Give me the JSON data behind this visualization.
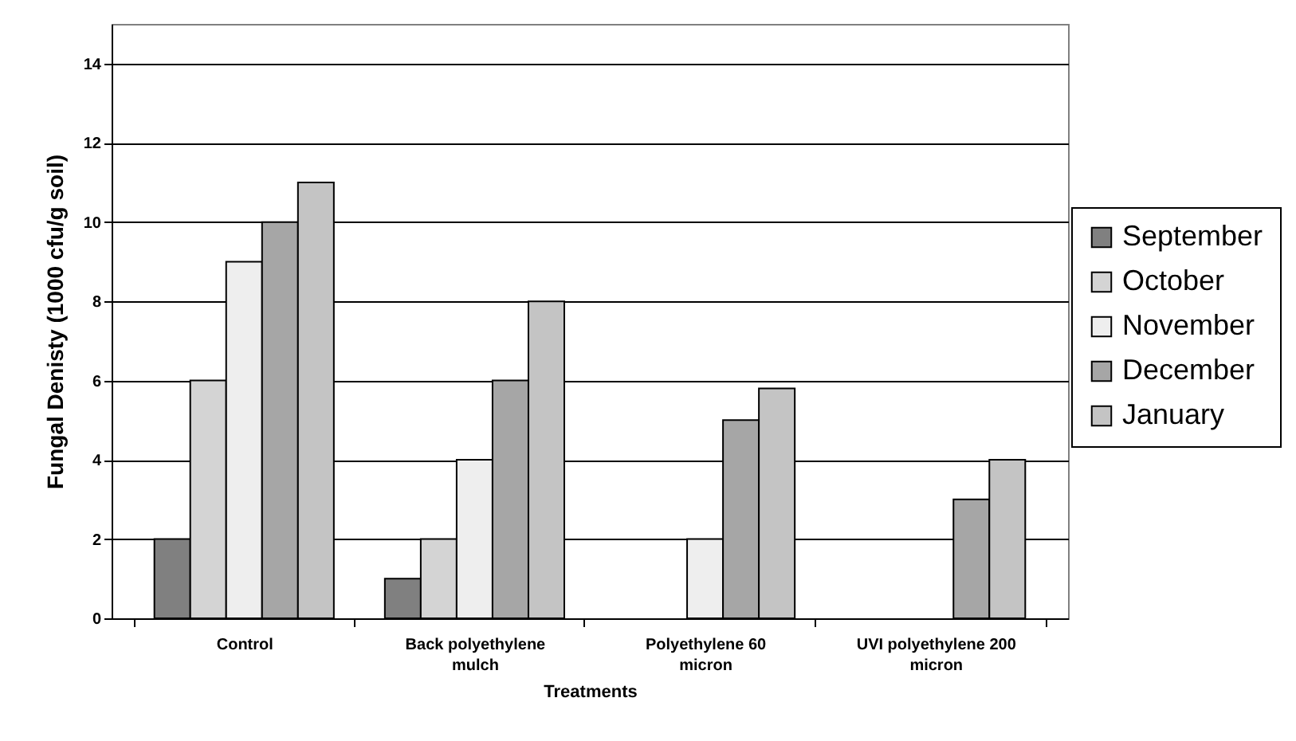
{
  "chart_data": {
    "type": "bar",
    "xlabel": "Treatments",
    "ylabel": "Fungal Denisty (1000 cfu/g soil)",
    "categories": [
      "Control",
      "Back polyethylene mulch",
      "Polyethylene 60 micron",
      "UVI polyethylene 200 micron"
    ],
    "series": [
      {
        "name": "September",
        "color": "#808080",
        "values": [
          2,
          1,
          null,
          null
        ]
      },
      {
        "name": "October",
        "color": "#d4d4d4",
        "values": [
          6,
          2,
          null,
          null
        ]
      },
      {
        "name": "November",
        "color": "#eeeeee",
        "values": [
          9,
          4,
          2,
          null
        ]
      },
      {
        "name": "December",
        "color": "#a6a6a6",
        "values": [
          10,
          6,
          5,
          3
        ]
      },
      {
        "name": "January",
        "color": "#c4c4c4",
        "values": [
          11,
          8,
          5.8,
          4
        ]
      }
    ],
    "ylim": [
      0,
      15
    ],
    "yticks": [
      0,
      2,
      4,
      6,
      8,
      10,
      12,
      14
    ],
    "grid": "y",
    "legend": "right"
  }
}
